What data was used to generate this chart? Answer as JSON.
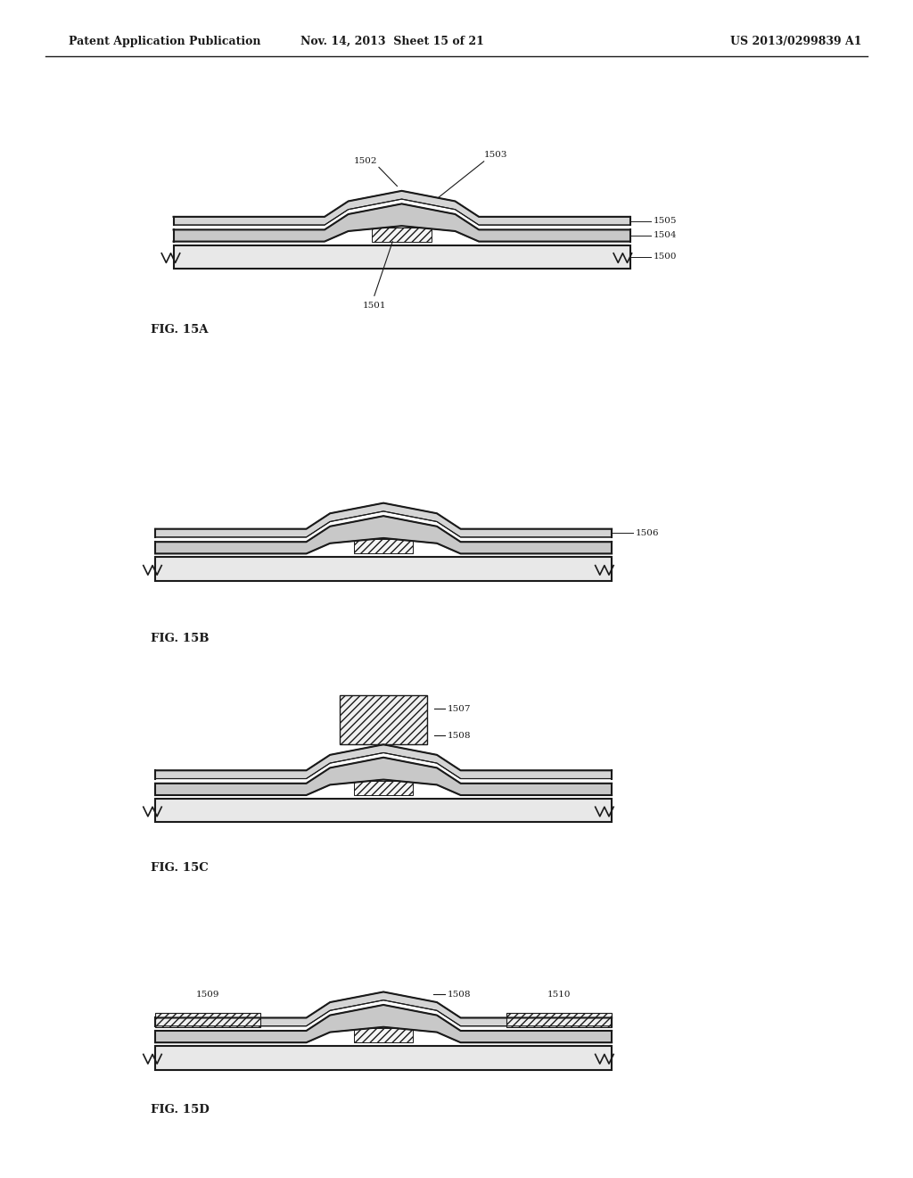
{
  "title_left": "Patent Application Publication",
  "title_mid": "Nov. 14, 2013  Sheet 15 of 21",
  "title_right": "US 2013/0299839 A1",
  "background_color": "#ffffff",
  "figures": [
    "FIG. 15A",
    "FIG. 15B",
    "FIG. 15C",
    "FIG. 15D"
  ],
  "color_main": "#1a1a1a",
  "lw_main": 1.5,
  "lw_thin": 0.8
}
